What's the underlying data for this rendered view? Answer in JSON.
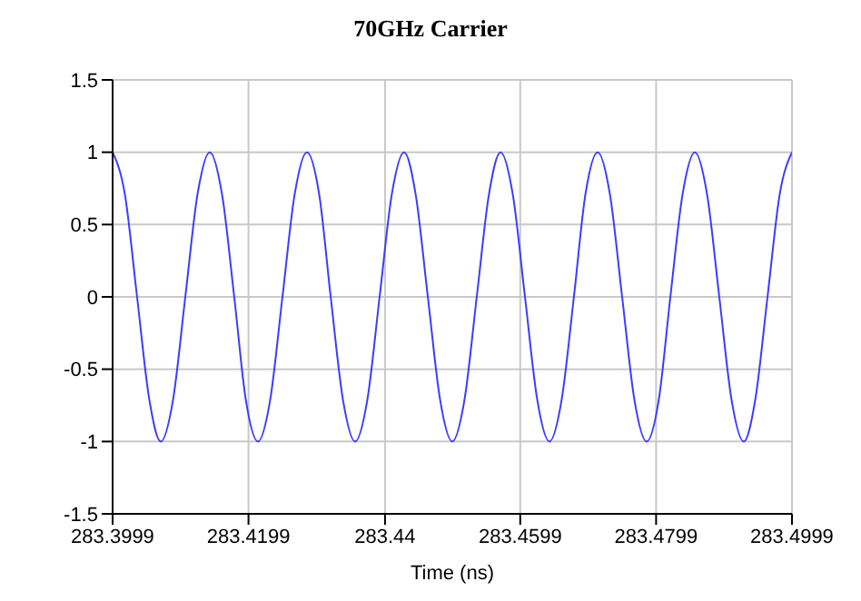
{
  "chart_data": {
    "type": "line",
    "title": "70GHz Carrier",
    "xlabel": "Time (ns)",
    "x": [
      283.3999,
      283.4017,
      283.4035,
      283.4053,
      283.407,
      283.4088,
      283.4106,
      283.4124,
      283.4142,
      283.416,
      283.4178,
      283.4195,
      283.4213,
      283.4231,
      283.4249,
      283.4267,
      283.4285,
      283.4303,
      283.432,
      283.4338,
      283.4356,
      283.4374,
      283.4392,
      283.441,
      283.4428,
      283.4445,
      283.4463,
      283.4481,
      283.4499,
      283.4517,
      283.4535,
      283.4553,
      283.457,
      283.4588,
      283.4606,
      283.4624,
      283.4642,
      283.466,
      283.4678,
      283.4695,
      283.4713,
      283.4731,
      283.4749,
      283.4767,
      283.4785,
      283.4803,
      283.482,
      283.4838,
      283.4856,
      283.4874,
      283.4892,
      283.491,
      283.4928,
      283.4945,
      283.4963,
      283.4981,
      283.4999
    ],
    "series": [
      {
        "color": "#3c3cff",
        "values": [
          1,
          0.71,
          0,
          -0.71,
          -1,
          -0.71,
          0,
          0.71,
          1,
          0.71,
          0,
          -0.71,
          -1,
          -0.71,
          0,
          0.71,
          1,
          0.71,
          0,
          -0.71,
          -1,
          -0.71,
          0,
          0.71,
          1,
          0.71,
          0,
          -0.71,
          -1,
          -0.71,
          0,
          0.71,
          1,
          0.71,
          0,
          -0.71,
          -1,
          -0.71,
          0,
          0.71,
          1,
          0.71,
          0,
          -0.71,
          -1,
          -0.71,
          0,
          0.71,
          1,
          0.71,
          0,
          -0.71,
          -1,
          -0.71,
          0,
          0.71,
          1
        ]
      }
    ],
    "xlim": [
      283.3999,
      283.4999
    ],
    "xticks": [
      283.3999,
      283.4199,
      283.44,
      283.4599,
      283.4799,
      283.4999
    ],
    "ylim": [
      -1.5,
      1.5
    ],
    "yticks": [
      -1.5,
      -1,
      -0.5,
      0,
      0.5,
      1,
      1.5
    ],
    "grid": true,
    "legend": false,
    "marker": "none",
    "line_style": "solid"
  }
}
